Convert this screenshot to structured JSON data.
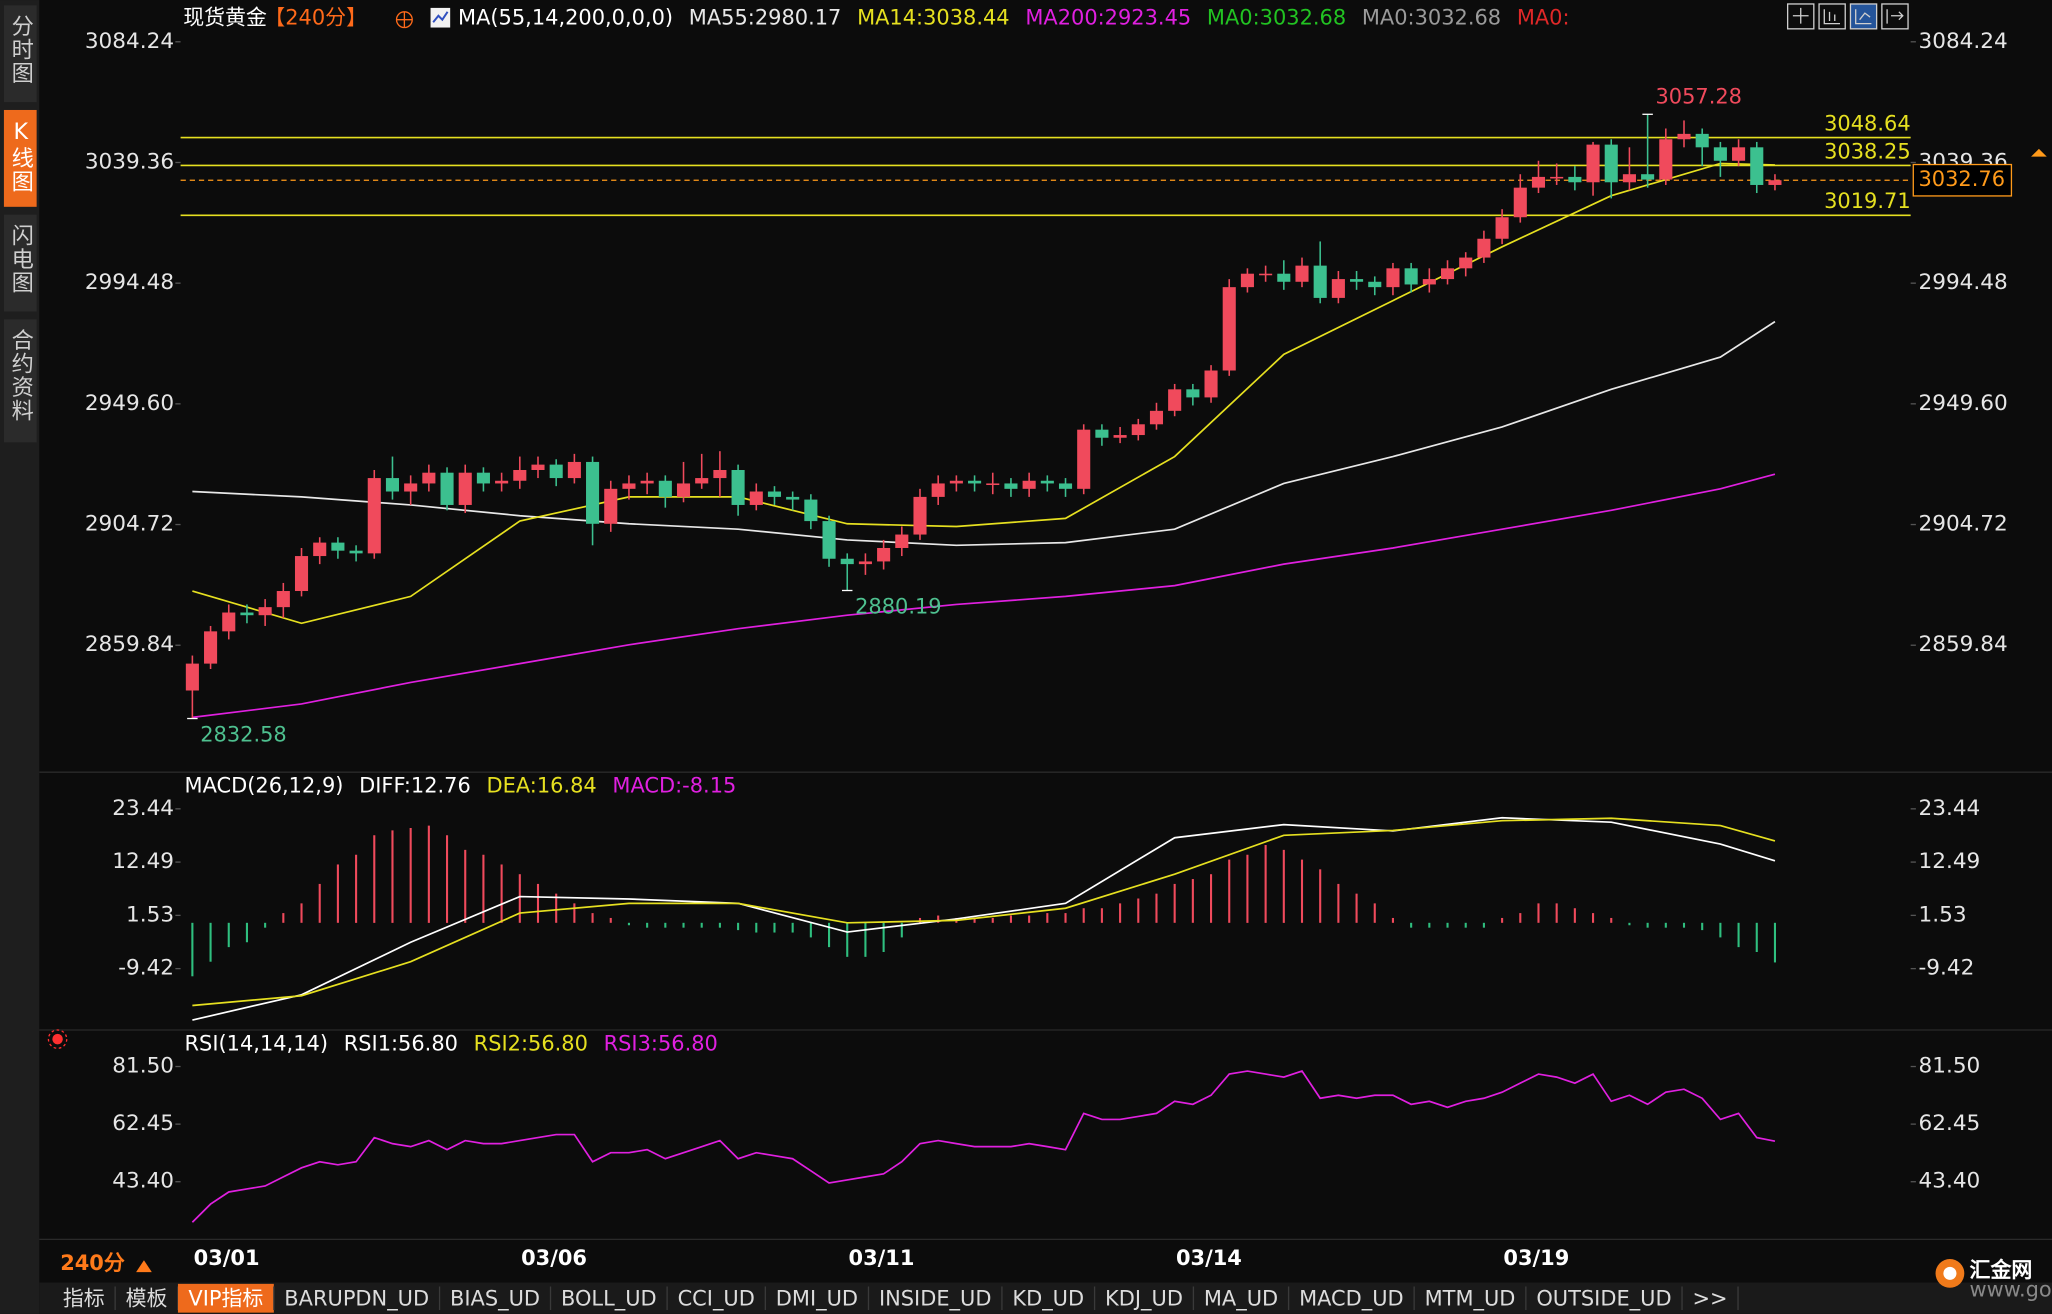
{
  "ui": {
    "sidebar": [
      "分时图",
      "K线图",
      "闪电图",
      "合约资料"
    ],
    "sidebar_active": 1,
    "period": "240分",
    "tabs": [
      "指标",
      "模板",
      "VIP指标",
      "BARUPDN_UD",
      "BIAS_UD",
      "BOLL_UD",
      "CCI_UD",
      "DMI_UD",
      "INSIDE_UD",
      "KD_UD",
      "KDJ_UD",
      "MA_UD",
      "MACD_UD",
      "MTM_UD",
      "OUTSIDE_UD",
      ">>"
    ],
    "tabs_active": 2,
    "logo": "汇金网",
    "logo_url": "www.gold678.com"
  },
  "chart_data": [
    {
      "type": "candlestick",
      "title": "现货黄金",
      "period_label": "【240分】",
      "indicator": "MA(55,14,200,0,0,0)",
      "categories": [
        "03/01",
        null,
        null,
        null,
        null,
        null,
        null,
        null,
        null,
        null,
        null,
        null,
        null,
        null,
        null,
        null,
        null,
        null,
        "03/06",
        null,
        null,
        null,
        null,
        null,
        null,
        null,
        null,
        null,
        null,
        null,
        null,
        null,
        null,
        null,
        null,
        null,
        "03/11",
        null,
        null,
        null,
        null,
        null,
        null,
        null,
        null,
        null,
        null,
        null,
        null,
        null,
        null,
        null,
        null,
        null,
        "03/14",
        null,
        null,
        null,
        null,
        null,
        null,
        null,
        null,
        null,
        null,
        null,
        null,
        null,
        null,
        null,
        null,
        null,
        "03/19",
        null,
        null,
        null,
        null,
        null,
        null,
        null,
        null,
        null,
        null,
        null,
        null,
        null,
        null,
        null
      ],
      "open": [
        2843,
        2853,
        2865,
        2872,
        2871,
        2874,
        2880,
        2893,
        2898,
        2895,
        2894,
        2922,
        2917,
        2920,
        2924,
        2912,
        2924,
        2920,
        2921,
        2925,
        2927,
        2922,
        2928,
        2905,
        2918,
        2920,
        2921,
        2915,
        2920,
        2922,
        2925,
        2912,
        2917,
        2915,
        2914,
        2906,
        2892,
        2890,
        2891,
        2896,
        2901,
        2915,
        2920,
        2921,
        2920,
        2920,
        2918,
        2921,
        2920,
        2918,
        2940,
        2937,
        2938,
        2942,
        2947,
        2955,
        2952,
        2962,
        2993,
        2998,
        2998,
        2995,
        3001,
        2989,
        2996,
        2995,
        2993,
        3000,
        2994,
        2996,
        3000,
        3004,
        3011,
        3019,
        3030,
        3034,
        3034,
        3032,
        3046,
        3032,
        3035,
        3033,
        3048,
        3050,
        3045,
        3040,
        3045,
        3031
      ],
      "high": [
        2856,
        2867,
        2875,
        2875,
        2877,
        2883,
        2896,
        2900,
        2900,
        2897,
        2925,
        2930,
        2923,
        2927,
        2926,
        2927,
        2926,
        2924,
        2930,
        2930,
        2929,
        2931,
        2930,
        2921,
        2923,
        2924,
        2923,
        2928,
        2931,
        2932,
        2927,
        2920,
        2919,
        2917,
        2916,
        2908,
        2894,
        2894,
        2899,
        2904,
        2918,
        2923,
        2923,
        2923,
        2924,
        2922,
        2924,
        2923,
        2922,
        2942,
        2942,
        2941,
        2944,
        2950,
        2957,
        2957,
        2964,
        2996,
        3000,
        3001,
        3003,
        3004,
        3010,
        2999,
        2999,
        2997,
        3002,
        3002,
        3000,
        3003,
        3006,
        3014,
        3022,
        3035,
        3040,
        3039,
        3038,
        3047,
        3048,
        3045,
        3057.28,
        3052,
        3055,
        3052,
        3047,
        3048,
        3047,
        3035
      ],
      "low": [
        2832.58,
        2851,
        2862,
        2868,
        2867,
        2870,
        2878,
        2890,
        2892,
        2891,
        2892,
        2914,
        2912,
        2917,
        2910,
        2909,
        2917,
        2917,
        2918,
        2922,
        2919,
        2920,
        2897,
        2902,
        2914,
        2916,
        2911,
        2913,
        2918,
        2915,
        2908,
        2910,
        2912,
        2910,
        2903,
        2889,
        2880.19,
        2886,
        2888,
        2893,
        2899,
        2912,
        2917,
        2917,
        2916,
        2915,
        2915,
        2917,
        2915,
        2916,
        2934,
        2935,
        2936,
        2940,
        2945,
        2949,
        2950,
        2960,
        2991,
        2995,
        2992,
        2993,
        2987,
        2987,
        2992,
        2990,
        2990,
        2991,
        2991,
        2994,
        2997,
        3002,
        3009,
        3017,
        3028,
        3031,
        3029,
        3027,
        3026,
        3029,
        3030,
        3031,
        3045,
        3038,
        3034,
        3038,
        3028,
        3029
      ],
      "close": [
        2853,
        2865,
        2872,
        2871,
        2874,
        2880,
        2893,
        2898,
        2895,
        2894,
        2922,
        2917,
        2920,
        2924,
        2912,
        2924,
        2920,
        2921,
        2925,
        2927,
        2922,
        2928,
        2905,
        2918,
        2920,
        2921,
        2915,
        2920,
        2922,
        2925,
        2912,
        2917,
        2915,
        2914,
        2906,
        2892,
        2890,
        2891,
        2896,
        2901,
        2915,
        2920,
        2921,
        2920,
        2920,
        2918,
        2921,
        2920,
        2918,
        2940,
        2937,
        2938,
        2942,
        2947,
        2955,
        2952,
        2962,
        2993,
        2998,
        2998,
        2995,
        3001,
        2989,
        2996,
        2995,
        2993,
        3000,
        2994,
        2996,
        3000,
        3004,
        3011,
        3019,
        3030,
        3034,
        3034,
        3032,
        3046,
        3032,
        3035,
        3033,
        3048,
        3050,
        3045,
        3040,
        3045,
        3031,
        3032.76
      ],
      "up_color": "#f04a5c",
      "down_color": "#3cc08f",
      "series": [
        {
          "name": "MA55:2980.17",
          "color": "#e8e8e8",
          "x": [
            0,
            6,
            12,
            18,
            24,
            30,
            36,
            42,
            48,
            54,
            60,
            66,
            72,
            78,
            84,
            87
          ],
          "values": [
            2917,
            2915,
            2912,
            2908,
            2905,
            2903,
            2899,
            2897,
            2898,
            2903,
            2920,
            2930,
            2941,
            2955,
            2967,
            2980.17
          ]
        },
        {
          "name": "MA14:3038.44",
          "color": "#e6e020",
          "x": [
            0,
            6,
            12,
            18,
            24,
            30,
            36,
            42,
            48,
            54,
            60,
            66,
            72,
            78,
            84,
            87
          ],
          "values": [
            2880,
            2868,
            2878,
            2906,
            2915,
            2915,
            2905,
            2904,
            2907,
            2930,
            2968,
            2988,
            3008,
            3027,
            3039,
            3038.44
          ]
        },
        {
          "name": "MA200:2923.45",
          "color": "#e020e0",
          "x": [
            0,
            6,
            12,
            18,
            24,
            30,
            36,
            42,
            48,
            54,
            60,
            66,
            72,
            78,
            84,
            87
          ],
          "values": [
            2833,
            2838,
            2846,
            2853,
            2860,
            2866,
            2871,
            2875,
            2878,
            2882,
            2890,
            2896,
            2903,
            2910,
            2918,
            2923.45
          ]
        }
      ],
      "legend_extra": [
        {
          "name": "MA0:3032.68",
          "color": "#22c322"
        },
        {
          "name": "MA0:3032.68",
          "color": "#9a9a9a"
        },
        {
          "name": "MA0:",
          "color": "#e02828"
        }
      ],
      "hlines": [
        3048.64,
        3038.25,
        3019.71
      ],
      "hline_color": "#e6e020",
      "last_price": 3032.76,
      "last_price_color": "#ff9a1a",
      "annotations": [
        {
          "x": 80,
          "value": 3057.28,
          "color": "#f04a5c"
        },
        {
          "x": 36,
          "value": 2880.19,
          "color": "#4ec08f"
        },
        {
          "x": 0,
          "value": 2832.58,
          "color": "#4ec08f"
        }
      ],
      "ylim": [
        2817.5,
        3087.6
      ],
      "yticks": [
        3084.24,
        3039.36,
        2994.48,
        {
          "value": 2949.6,
          "label": "2949.60"
        },
        2904.72,
        2859.84
      ]
    },
    {
      "type": "macd",
      "title": "MACD(26,12,9)",
      "series": [
        {
          "name": "DIFF:12.76",
          "color": "#ffffff",
          "x": [
            0,
            6,
            12,
            18,
            24,
            30,
            36,
            42,
            48,
            54,
            60,
            66,
            72,
            78,
            84,
            87
          ],
          "values": [
            -20,
            -14.8,
            -4,
            5.4,
            4.9,
            4,
            -1.9,
            0.8,
            4,
            17.5,
            20.2,
            18.9,
            21.6,
            20.7,
            16.2,
            12.76
          ]
        },
        {
          "name": "DEA:16.84",
          "color": "#e6e020",
          "x": [
            0,
            6,
            12,
            18,
            24,
            30,
            36,
            42,
            48,
            54,
            60,
            66,
            72,
            78,
            84,
            87
          ],
          "values": [
            -17,
            -15,
            -8,
            2,
            4,
            4,
            0,
            0.5,
            3,
            10,
            18,
            19,
            21,
            21.5,
            20,
            16.84
          ]
        },
        {
          "name": "MACD:-8.15",
          "color": "#e020e0",
          "kind": "bar",
          "up_color": "#f04a5c",
          "down_color": "#2fbf7f",
          "values": [
            -11,
            -8,
            -5,
            -4,
            -1,
            2,
            4,
            8,
            12,
            14,
            18,
            19,
            19.5,
            20,
            18,
            15,
            14,
            12,
            10,
            8,
            6,
            4,
            2,
            1,
            -0.5,
            -1,
            -1,
            -1,
            -1,
            -1,
            -1.5,
            -2,
            -2,
            -2,
            -3,
            -5,
            -7,
            -7,
            -6,
            -3,
            1,
            1.5,
            1,
            1,
            1,
            1.5,
            1.5,
            2,
            2,
            3,
            3,
            4,
            5,
            6,
            8,
            9,
            10,
            13,
            14,
            16,
            15,
            13,
            11,
            8,
            6,
            4,
            1,
            -1,
            -1,
            -1,
            -1,
            -1,
            1,
            2,
            4,
            4,
            3,
            2,
            1,
            -0.5,
            -1,
            -1,
            -1,
            -1.5,
            -3,
            -5,
            -6,
            -8.15
          ]
        }
      ],
      "ylim": [
        -21.5,
        25.6
      ],
      "yticks": [
        23.44,
        12.49,
        1.53,
        -9.42
      ]
    },
    {
      "type": "line",
      "title": "RSI(14,14,14)",
      "series": [
        {
          "name": "RSI1:56.80",
          "color": "#ffffff"
        },
        {
          "name": "RSI2:56.80",
          "color": "#e6e020"
        },
        {
          "name": "RSI3:56.80",
          "color": "#e020e0",
          "values": [
            30,
            36,
            40,
            41,
            42,
            45,
            48,
            50,
            49,
            50,
            58,
            56,
            55,
            57,
            54,
            57,
            56,
            56,
            57,
            58,
            59,
            59,
            50,
            53,
            53,
            54,
            51,
            53,
            55,
            57,
            51,
            53,
            52,
            51,
            47,
            43,
            44,
            45,
            46,
            50,
            56,
            57,
            56,
            55,
            55,
            55,
            56,
            55,
            54,
            66,
            64,
            64,
            65,
            66,
            70,
            69,
            72,
            79,
            80,
            79,
            78,
            80,
            71,
            72,
            71,
            72,
            72,
            69,
            70,
            68,
            70,
            71,
            73,
            76,
            79,
            78,
            76,
            79,
            70,
            72,
            69,
            73,
            74,
            71,
            64,
            66,
            58,
            56.8
          ]
        }
      ],
      "ylim": [
        25.2,
        84.5
      ],
      "yticks": [
        {
          "value": 81.5,
          "label": "81.50"
        },
        62.45,
        {
          "value": 43.4,
          "label": "43.40"
        }
      ]
    }
  ]
}
